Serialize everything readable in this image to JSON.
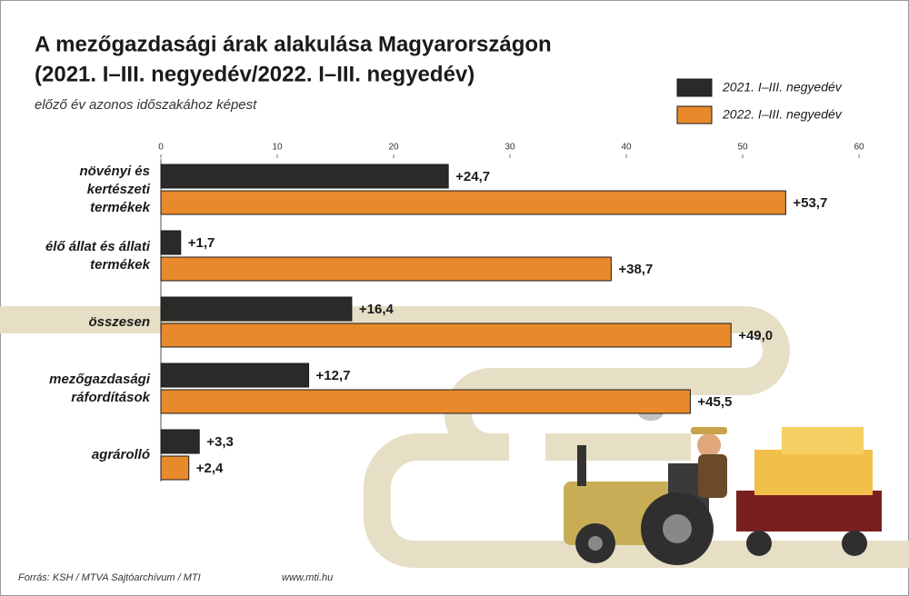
{
  "chart_data": {
    "type": "bar",
    "orientation": "horizontal",
    "title": [
      "A mezőgazdasági árak alakulása Magyarországon",
      "(2021. I–III. negyedév/2022. I–III. negyedév)"
    ],
    "subtitle": "előző év azonos időszakához képest",
    "categories": [
      "növényi és kertészeti termékek",
      "élő állat és állati termékek",
      "összesen",
      "mezőgazdasági ráfordítások",
      "agrárolló"
    ],
    "series": [
      {
        "name": "2021. I–III. negyedév",
        "color": "#2b2a29",
        "values": [
          24.7,
          1.7,
          16.4,
          12.7,
          3.3
        ],
        "value_labels": [
          "+24,7",
          "+1,7",
          "+16,4",
          "+12,7",
          "+3,3"
        ]
      },
      {
        "name": "2022. I–III. negyedév",
        "color": "#e8892b",
        "values": [
          53.7,
          38.7,
          49.0,
          45.5,
          2.4
        ],
        "value_labels": [
          "+53,7",
          "+38,7",
          "+49,0",
          "+45,5",
          "+2,4"
        ]
      }
    ],
    "xlim": [
      0,
      60
    ],
    "xticks": [
      0,
      10,
      20,
      30,
      40,
      50,
      60
    ],
    "legend": "top-right",
    "source": "Forrás: KSH / MTVA Sajtóarchívum / MTI",
    "website": "www.mti.hu"
  }
}
